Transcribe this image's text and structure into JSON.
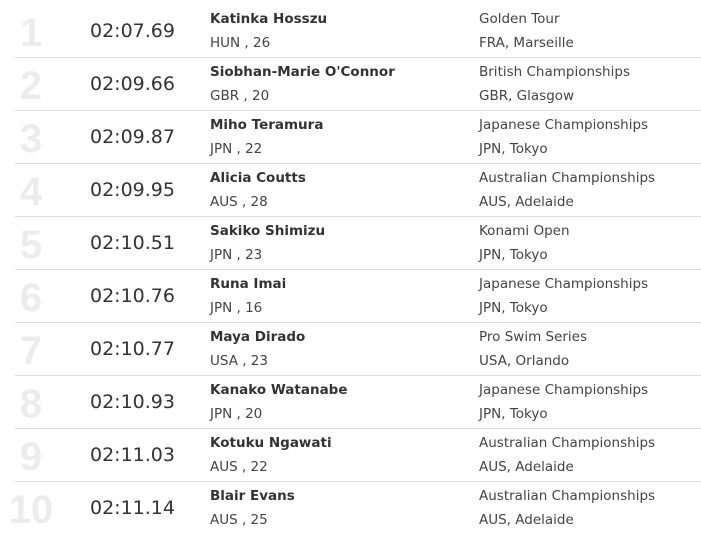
{
  "rankings": [
    {
      "rank": "1",
      "time": "02:07.69",
      "name": "Katinka Hosszu",
      "country_age": "HUN , 26",
      "meet": "Golden Tour",
      "location": "FRA, Marseille"
    },
    {
      "rank": "2",
      "time": "02:09.66",
      "name": "Siobhan-Marie O'Connor",
      "country_age": "GBR , 20",
      "meet": "British Championships",
      "location": "GBR, Glasgow"
    },
    {
      "rank": "3",
      "time": "02:09.87",
      "name": "Miho Teramura",
      "country_age": "JPN , 22",
      "meet": "Japanese Championships",
      "location": "JPN, Tokyo"
    },
    {
      "rank": "4",
      "time": "02:09.95",
      "name": "Alicia Coutts",
      "country_age": "AUS , 28",
      "meet": "Australian Championships",
      "location": "AUS, Adelaide"
    },
    {
      "rank": "5",
      "time": "02:10.51",
      "name": "Sakiko Shimizu",
      "country_age": "JPN , 23",
      "meet": "Konami Open",
      "location": "JPN, Tokyo"
    },
    {
      "rank": "6",
      "time": "02:10.76",
      "name": "Runa Imai",
      "country_age": "JPN , 16",
      "meet": "Japanese Championships",
      "location": "JPN, Tokyo"
    },
    {
      "rank": "7",
      "time": "02:10.77",
      "name": "Maya Dirado",
      "country_age": "USA , 23",
      "meet": "Pro Swim Series",
      "location": "USA, Orlando"
    },
    {
      "rank": "8",
      "time": "02:10.93",
      "name": "Kanako Watanabe",
      "country_age": "JPN , 20",
      "meet": "Japanese Championships",
      "location": "JPN, Tokyo"
    },
    {
      "rank": "9",
      "time": "02:11.03",
      "name": "Kotuku Ngawati",
      "country_age": "AUS , 22",
      "meet": "Australian Championships",
      "location": "AUS, Adelaide"
    },
    {
      "rank": "10",
      "time": "02:11.14",
      "name": "Blair Evans",
      "country_age": "AUS , 25",
      "meet": "Australian Championships",
      "location": "AUS, Adelaide"
    }
  ]
}
